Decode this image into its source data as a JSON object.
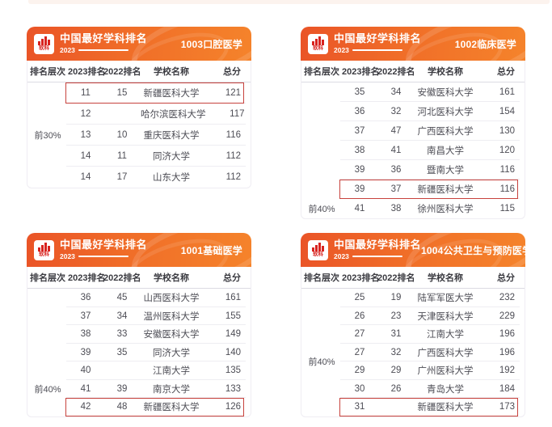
{
  "brand": {
    "title": "中国最好学科排名",
    "year": "2023",
    "logo_text": "软科"
  },
  "table_headers": {
    "tier": "排名层次",
    "rank2023": "2023排名",
    "rank2022": "2022排名",
    "school": "学校名称",
    "score": "总分"
  },
  "colors": {
    "header_gradient_start": "#ea5427",
    "header_gradient_end": "#f5832b",
    "highlight_border": "#c7423d",
    "logo_red": "#d8231f"
  },
  "panels": [
    {
      "id": "1003",
      "badge": "1003口腔医学",
      "tier_label": "前30%",
      "rows": [
        {
          "r2023": "11",
          "r2022": "15",
          "school": "新疆医科大学",
          "score": "121",
          "highlight": true
        },
        {
          "r2023": "12",
          "r2022": "",
          "school": "哈尔滨医科大学",
          "score": "117"
        },
        {
          "r2023": "13",
          "r2022": "10",
          "school": "重庆医科大学",
          "score": "116"
        },
        {
          "r2023": "14",
          "r2022": "11",
          "school": "同济大学",
          "score": "112"
        },
        {
          "r2023": "14",
          "r2022": "17",
          "school": "山东大学",
          "score": "112"
        }
      ]
    },
    {
      "id": "1002",
      "badge": "1002临床医学",
      "tier_label": "前40%",
      "rows": [
        {
          "r2023": "35",
          "r2022": "34",
          "school": "安徽医科大学",
          "score": "161"
        },
        {
          "r2023": "36",
          "r2022": "32",
          "school": "河北医科大学",
          "score": "154"
        },
        {
          "r2023": "37",
          "r2022": "47",
          "school": "广西医科大学",
          "score": "130"
        },
        {
          "r2023": "38",
          "r2022": "41",
          "school": "南昌大学",
          "score": "120"
        },
        {
          "r2023": "39",
          "r2022": "36",
          "school": "暨南大学",
          "score": "116"
        },
        {
          "r2023": "39",
          "r2022": "37",
          "school": "新疆医科大学",
          "score": "116",
          "highlight": true
        },
        {
          "r2023": "41",
          "r2022": "38",
          "school": "徐州医科大学",
          "score": "115"
        }
      ]
    },
    {
      "id": "1001",
      "badge": "1001基础医学",
      "tier_label": "前40%",
      "rows": [
        {
          "r2023": "36",
          "r2022": "45",
          "school": "山西医科大学",
          "score": "161"
        },
        {
          "r2023": "37",
          "r2022": "34",
          "school": "温州医科大学",
          "score": "155"
        },
        {
          "r2023": "38",
          "r2022": "33",
          "school": "安徽医科大学",
          "score": "149"
        },
        {
          "r2023": "39",
          "r2022": "35",
          "school": "同济大学",
          "score": "140"
        },
        {
          "r2023": "40",
          "r2022": "",
          "school": "江南大学",
          "score": "135"
        },
        {
          "r2023": "41",
          "r2022": "39",
          "school": "南京大学",
          "score": "133"
        },
        {
          "r2023": "42",
          "r2022": "48",
          "school": "新疆医科大学",
          "score": "126",
          "highlight": true
        }
      ]
    },
    {
      "id": "1004",
      "badge": "1004公共卫生与预防医学",
      "tier_label": "前40%",
      "rows": [
        {
          "r2023": "25",
          "r2022": "19",
          "school": "陆军军医大学",
          "score": "232"
        },
        {
          "r2023": "26",
          "r2022": "23",
          "school": "天津医科大学",
          "score": "229"
        },
        {
          "r2023": "27",
          "r2022": "31",
          "school": "江南大学",
          "score": "196"
        },
        {
          "r2023": "27",
          "r2022": "32",
          "school": "广西医科大学",
          "score": "196"
        },
        {
          "r2023": "29",
          "r2022": "29",
          "school": "广州医科大学",
          "score": "192"
        },
        {
          "r2023": "30",
          "r2022": "26",
          "school": "青岛大学",
          "score": "184"
        },
        {
          "r2023": "31",
          "r2022": "",
          "school": "新疆医科大学",
          "score": "173",
          "highlight": true
        }
      ]
    }
  ]
}
